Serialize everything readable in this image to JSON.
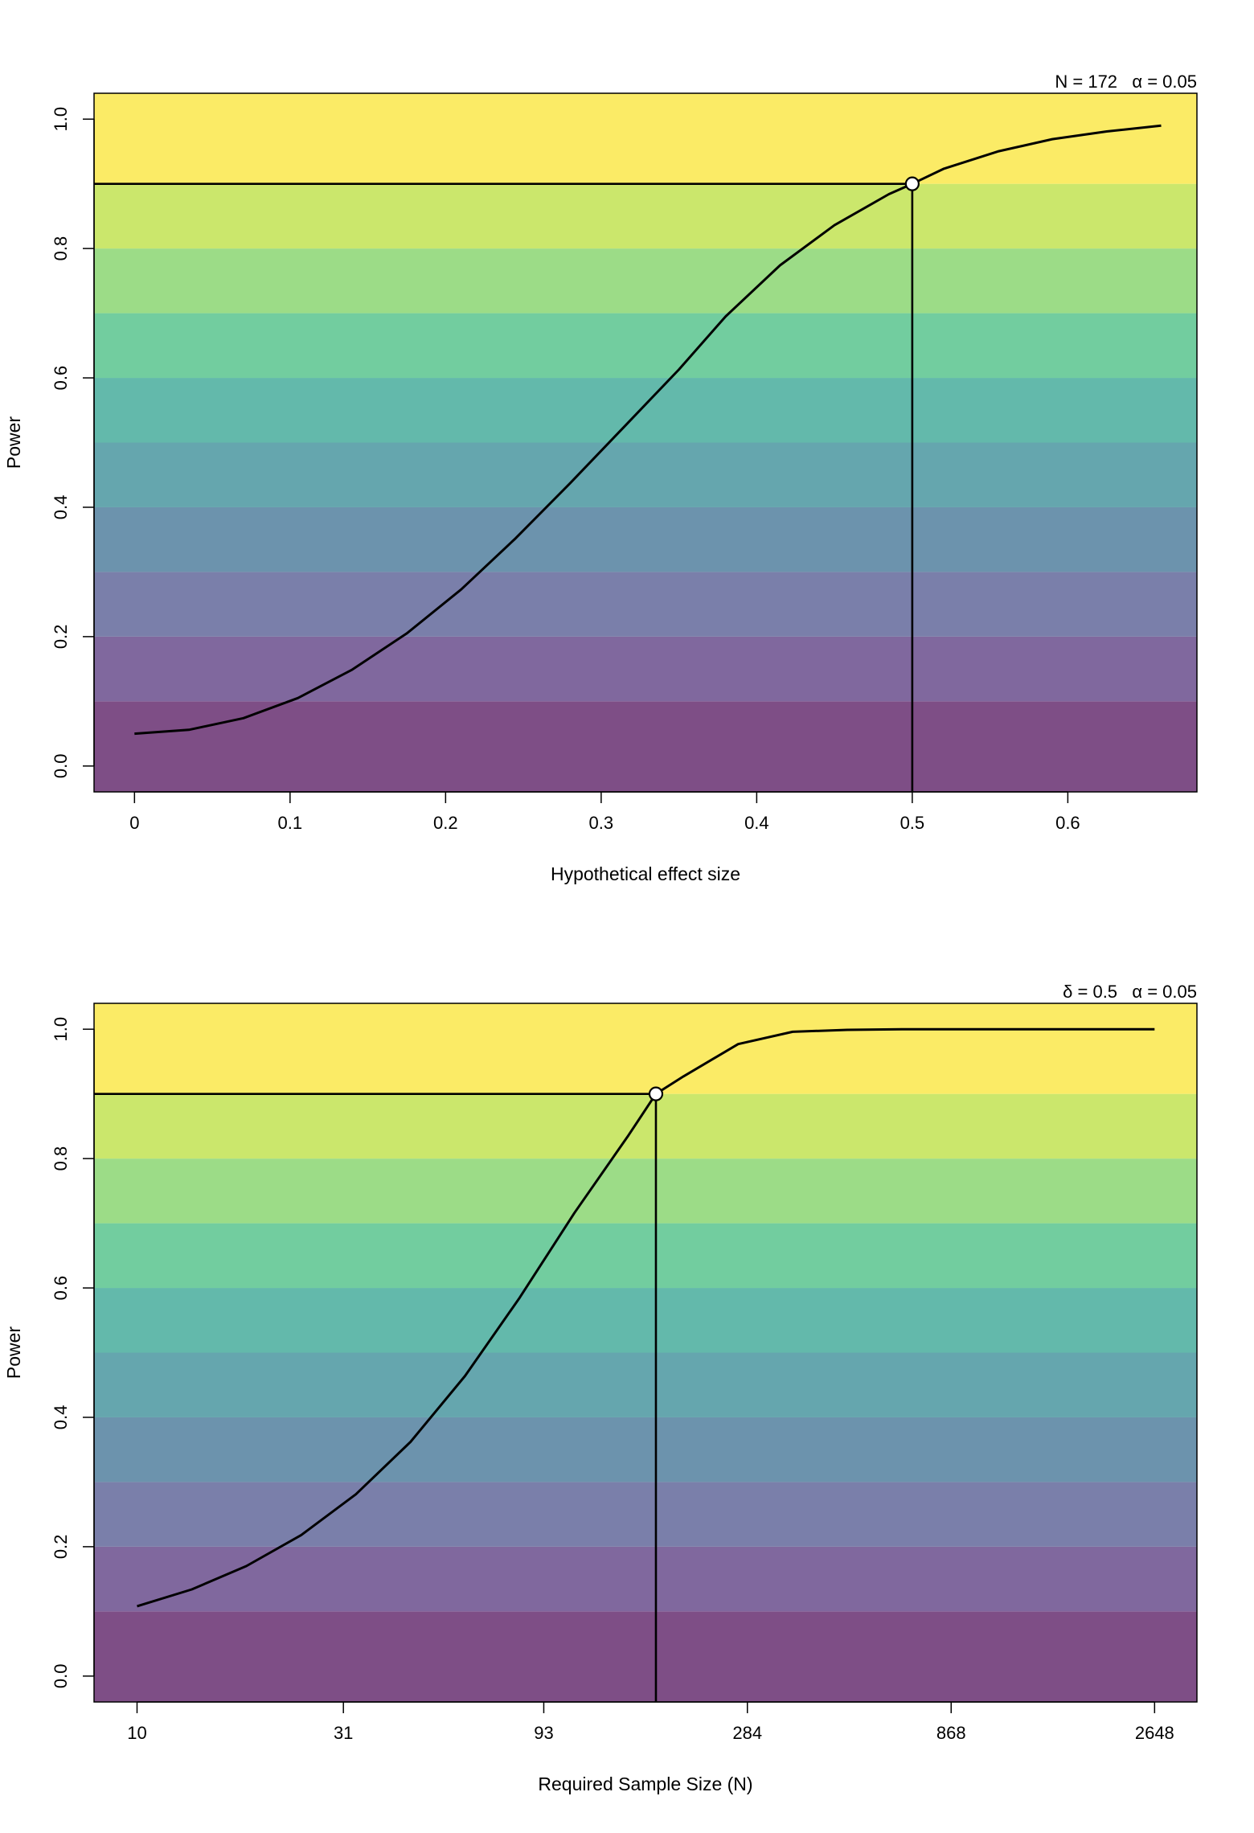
{
  "colors": {
    "bands": [
      "#7e4e86",
      "#80689e",
      "#7a7faa",
      "#6c93ad",
      "#65a6ae",
      "#63b9ab",
      "#72cd9f",
      "#9cdc87",
      "#cbe76c",
      "#fbeb66"
    ],
    "line": "#000000",
    "marker_fill": "#ffffff"
  },
  "chart_data": [
    {
      "type": "line",
      "title": "",
      "annotation": "N = 172   α = 0.05",
      "xlabel": "Hypothetical effect size",
      "ylabel": "Power",
      "xlim": [
        -0.026,
        0.683
      ],
      "ylim": [
        -0.04,
        1.04
      ],
      "x_scale": "linear",
      "x_ticks": [
        0,
        0.1,
        0.2,
        0.3,
        0.4,
        0.5,
        0.6
      ],
      "x_tick_labels": [
        "0",
        "0.1",
        "0.2",
        "0.3",
        "0.4",
        "0.5",
        "0.6"
      ],
      "y_ticks": [
        0,
        0.2,
        0.4,
        0.6,
        0.8,
        1.0
      ],
      "y_tick_labels": [
        "0.0",
        "0.2",
        "0.4",
        "0.6",
        "0.8",
        "1.0"
      ],
      "band_breaks": [
        0.1,
        0.2,
        0.3,
        0.4,
        0.5,
        0.6,
        0.7,
        0.8,
        0.9
      ],
      "grid": false,
      "legend": "none",
      "series": [
        {
          "x": [
            0,
            0.035,
            0.07,
            0.105,
            0.14,
            0.175,
            0.21,
            0.245,
            0.28,
            0.315,
            0.35,
            0.38,
            0.415,
            0.45,
            0.485,
            0.5,
            0.52,
            0.555,
            0.59,
            0.625,
            0.66
          ],
          "y": [
            0.05,
            0.056,
            0.074,
            0.105,
            0.149,
            0.205,
            0.273,
            0.352,
            0.437,
            0.525,
            0.613,
            0.695,
            0.774,
            0.836,
            0.884,
            0.9,
            0.923,
            0.95,
            0.969,
            0.981,
            0.99
          ]
        }
      ],
      "target_point": {
        "x": 0.5,
        "y": 0.9
      }
    },
    {
      "type": "line",
      "title": "",
      "annotation": "δ = 0.5   α = 0.05",
      "xlabel": "Required Sample Size (N)",
      "ylabel": "Power",
      "xlim": [
        7.9,
        3340
      ],
      "ylim": [
        -0.04,
        1.04
      ],
      "x_scale": "log",
      "x_ticks": [
        10,
        31,
        93,
        284,
        868,
        2648
      ],
      "x_tick_labels": [
        "10",
        "31",
        "93",
        "284",
        "868",
        "2648"
      ],
      "y_ticks": [
        0,
        0.2,
        0.4,
        0.6,
        0.8,
        1.0
      ],
      "y_tick_labels": [
        "0.0",
        "0.2",
        "0.4",
        "0.6",
        "0.8",
        "1.0"
      ],
      "band_breaks": [
        0.1,
        0.2,
        0.3,
        0.4,
        0.5,
        0.6,
        0.7,
        0.8,
        0.9
      ],
      "grid": false,
      "legend": "none",
      "series": [
        {
          "x": [
            10,
            13.5,
            18.2,
            24.6,
            33.2,
            44.8,
            60.4,
            81.5,
            110,
            148,
            172,
            200,
            270,
            364,
            491,
            663,
            894,
            1207,
            1628,
            2196,
            2648
          ],
          "y": [
            0.108,
            0.134,
            0.17,
            0.218,
            0.281,
            0.362,
            0.464,
            0.585,
            0.716,
            0.836,
            0.9,
            0.927,
            0.977,
            0.996,
            0.999,
            1.0,
            1.0,
            1.0,
            1.0,
            1.0,
            1.0
          ]
        }
      ],
      "target_point": {
        "x": 172,
        "y": 0.9
      }
    }
  ]
}
